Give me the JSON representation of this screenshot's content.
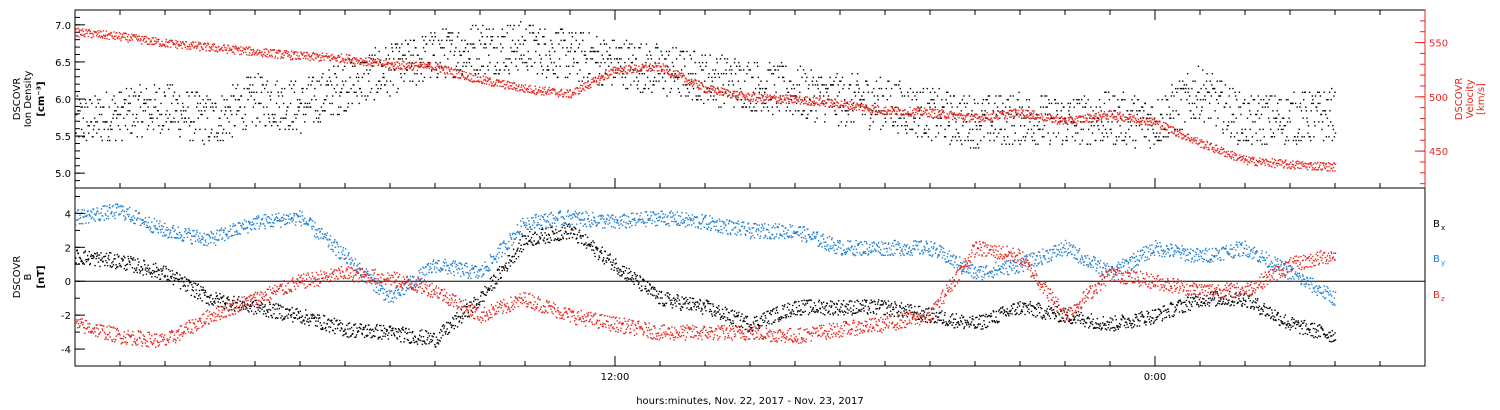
{
  "chart_data": [
    {
      "type": "scatter",
      "panel": "top",
      "ylabel_left": [
        "DSCOVR",
        "Ion Density",
        "[cm⁻³]"
      ],
      "ylabel_right": [
        "DSCOVR",
        "Velocity",
        "[km/s]"
      ],
      "xlabel": "hours:minutes, Nov. 22, 2017 - Nov. 23, 2017",
      "x_ticks": [
        {
          "label": "12:00",
          "hour": 12
        },
        {
          "label": "0:00",
          "hour": 24
        }
      ],
      "xlim_hours": [
        0.0,
        30.0
      ],
      "ylim_left": [
        4.8,
        7.2
      ],
      "ylim_right": [
        416,
        580
      ],
      "y_ticks_left": [
        "5.0",
        "5.5",
        "6.0",
        "6.5",
        "7.0"
      ],
      "y_ticks_right": [
        "450",
        "500",
        "550"
      ],
      "grid": false,
      "series": [
        {
          "name": "Ion Density",
          "axis": "left",
          "color": "#000000",
          "x": [
            0.0,
            1.0,
            2.0,
            3.0,
            4.0,
            5.0,
            6.0,
            7.0,
            8.0,
            9.0,
            10.0,
            11.0,
            12.0,
            13.0,
            14.0,
            15.0,
            16.0,
            17.0,
            18.0,
            19.0,
            20.0,
            21.0,
            22.0,
            23.0,
            24.0,
            25.0,
            26.0,
            27.0,
            28.0
          ],
          "y": [
            5.7,
            5.8,
            5.9,
            5.7,
            6.0,
            5.9,
            6.2,
            6.4,
            6.6,
            6.7,
            6.7,
            6.6,
            6.5,
            6.4,
            6.3,
            6.2,
            6.1,
            6.0,
            5.95,
            5.8,
            5.7,
            5.75,
            5.7,
            5.75,
            5.7,
            6.1,
            5.7,
            5.75,
            5.8
          ]
        },
        {
          "name": "Velocity",
          "axis": "right",
          "color": "#e8261e",
          "x": [
            0.0,
            1.0,
            2.0,
            3.0,
            4.0,
            5.0,
            6.0,
            7.0,
            8.0,
            9.0,
            10.0,
            11.0,
            12.0,
            13.0,
            14.0,
            15.0,
            16.0,
            17.0,
            18.0,
            19.0,
            20.0,
            21.0,
            22.0,
            23.0,
            24.0,
            25.0,
            26.0,
            27.0,
            28.0
          ],
          "y": [
            560,
            556,
            550,
            546,
            542,
            538,
            536,
            530,
            528,
            516,
            508,
            503,
            525,
            528,
            508,
            500,
            498,
            494,
            488,
            486,
            481,
            486,
            478,
            484,
            477,
            458,
            442,
            438,
            436
          ]
        }
      ]
    },
    {
      "type": "scatter",
      "panel": "bottom",
      "ylabel": [
        "DSCOVR",
        "B",
        "[nT]"
      ],
      "xlim_hours": [
        0.0,
        30.0
      ],
      "ylim": [
        -5.0,
        5.5
      ],
      "y_ticks": [
        "-4",
        "-2",
        "0",
        "2",
        "4"
      ],
      "zero_line": true,
      "legend": {
        "placement": "right",
        "entries": [
          "B",
          "B",
          "B"
        ],
        "subscripts": [
          "x",
          "y",
          "z"
        ]
      },
      "series": [
        {
          "name": "Bx",
          "color": "#000000",
          "x": [
            0.0,
            1.0,
            2.0,
            3.0,
            4.0,
            5.0,
            6.0,
            7.0,
            8.0,
            9.0,
            10.0,
            11.0,
            12.0,
            13.0,
            14.0,
            15.0,
            16.0,
            17.0,
            18.0,
            19.0,
            20.0,
            21.0,
            22.0,
            23.0,
            24.0,
            25.0,
            26.0,
            27.0,
            28.0
          ],
          "y": [
            1.5,
            1.2,
            0.5,
            -1.0,
            -1.5,
            -2.0,
            -2.8,
            -3.0,
            -3.4,
            -1.0,
            2.5,
            3.0,
            1.0,
            -1.0,
            -1.5,
            -2.5,
            -1.5,
            -1.5,
            -1.5,
            -2.0,
            -2.5,
            -1.5,
            -2.0,
            -2.5,
            -2.0,
            -1.0,
            -1.0,
            -2.5,
            -3.2
          ]
        },
        {
          "name": "By",
          "color": "#1f7fd1",
          "x": [
            0.0,
            1.0,
            2.0,
            3.0,
            4.0,
            5.0,
            6.0,
            7.0,
            8.0,
            9.0,
            10.0,
            11.0,
            12.0,
            13.0,
            14.0,
            15.0,
            16.0,
            17.0,
            18.0,
            19.0,
            20.0,
            21.0,
            22.0,
            23.0,
            24.0,
            25.0,
            26.0,
            27.0,
            28.0
          ],
          "y": [
            3.8,
            4.2,
            3.0,
            2.5,
            3.5,
            3.8,
            1.5,
            -1.0,
            1.0,
            0.5,
            3.5,
            3.8,
            3.5,
            3.8,
            3.5,
            3.0,
            3.0,
            2.0,
            2.0,
            2.0,
            0.5,
            1.0,
            2.0,
            0.5,
            2.0,
            1.5,
            2.0,
            0.5,
            -1.0
          ]
        },
        {
          "name": "Bz",
          "color": "#e8261e",
          "x": [
            0.0,
            1.0,
            2.0,
            3.0,
            4.0,
            5.0,
            6.0,
            7.0,
            8.0,
            9.0,
            10.0,
            11.0,
            12.0,
            13.0,
            14.0,
            15.0,
            16.0,
            17.0,
            18.0,
            19.0,
            20.0,
            21.0,
            22.0,
            23.0,
            24.0,
            25.0,
            26.0,
            27.0,
            28.0
          ],
          "y": [
            -2.5,
            -3.2,
            -3.5,
            -2.0,
            -1.0,
            0.0,
            0.5,
            0.2,
            -0.5,
            -2.0,
            -1.0,
            -2.0,
            -2.5,
            -3.0,
            -3.0,
            -3.0,
            -3.2,
            -2.8,
            -2.5,
            -2.0,
            2.0,
            1.5,
            -2.0,
            0.5,
            0.0,
            -0.5,
            -0.5,
            1.0,
            1.6
          ]
        }
      ]
    }
  ]
}
